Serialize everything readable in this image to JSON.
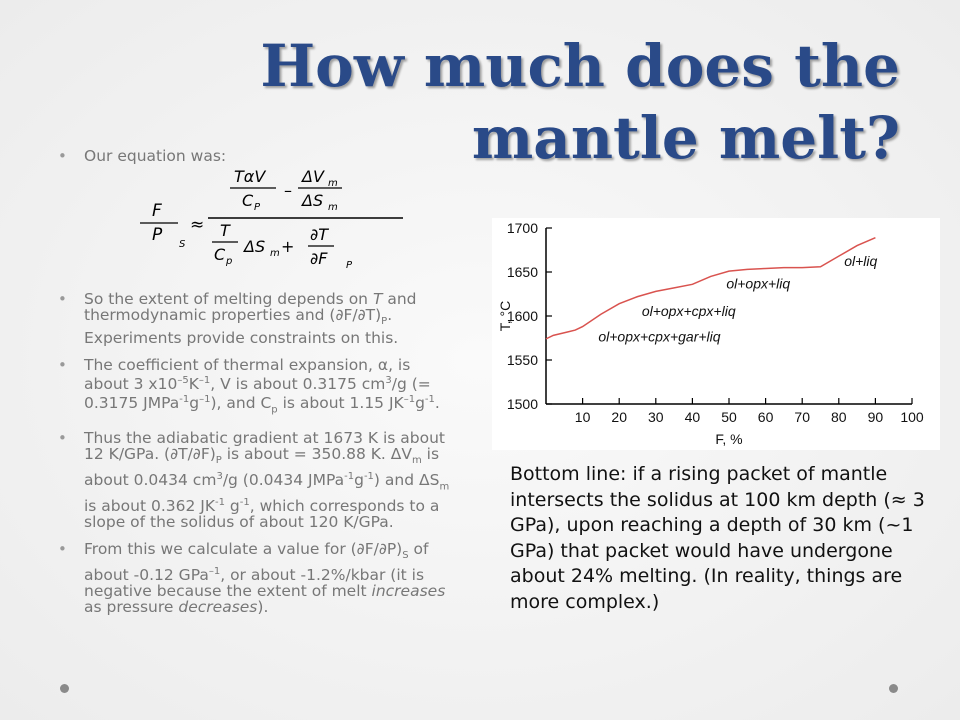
{
  "slide": {
    "title": "How much does the mantle melt?",
    "colors": {
      "title": "#2a4a88",
      "body_text": "#777777",
      "curve": "#d9534f",
      "background": "#f2f2f2"
    }
  },
  "bullets": {
    "b1": "Our equation was:",
    "b2": {
      "p1": "So the extent of melting depends on ",
      "T": "T",
      "p2": " and thermodynamic properties and (∂F/∂T)",
      "P": "P",
      "p3": ". Experiments provide constraints on this."
    },
    "b3": {
      "p1": "The coefficient of thermal expansion, α, is about 3 x10",
      "e1": "–5",
      "p2": "K",
      "e2": "–1",
      "p3": ", V is about 0.3175 cm",
      "e3": "3",
      "p4": "/g (= 0.3175 JMPa",
      "e4": "-1",
      "p5": "g",
      "e5": "–1",
      "p6": "), and C",
      "sp": "p",
      "p7": " is about 1.15 JK",
      "e6": "–1",
      "p8": "g",
      "e7": "-1",
      "p9": "."
    },
    "b4": {
      "p1": "Thus the adiabatic gradient at 1673 K is about 12 K/GPa. (∂T/∂F)",
      "sP": "P",
      "p2": " is about = 350.88 K. ΔV",
      "sm1": "m",
      "p3": " is about 0.0434 cm",
      "e1": "3",
      "p4": "/g (0.0434 JMPa",
      "e2": "-1",
      "p5": "g",
      "e3": "-1",
      "p6": ") and ΔS",
      "sm2": "m",
      "p7": " is about 0.362 JK",
      "e4": "-1",
      "p8": " g",
      "e5": "-1",
      "p9": ", which corresponds to a slope of the solidus of about 120 K/GPa."
    },
    "b5": {
      "p1": " From this we calculate a value for (∂F/∂P)",
      "sS": "S",
      "p2": " of about -0.12 GPa",
      "e1": "–1",
      "p3": ", or about -1.2%/kbar (it is negative because the extent of melt ",
      "i1": "increases",
      "p4": " as pressure ",
      "i2": "decreases",
      "p5": ")."
    }
  },
  "equation": {
    "glyph": "",
    "F": "F",
    "P": "P",
    "S": "S",
    "approx": "≈",
    "top_num": "TαV",
    "top_minus": "–",
    "dVm": "ΔV",
    "m": "m",
    "Cp": "C",
    "p": "P",
    "dSm": "ΔS",
    "T": "T",
    "cp_low": "p",
    "plus": "+",
    "dT": "∂T",
    "dF": "∂F"
  },
  "chart_data": {
    "type": "line",
    "xlabel": "F, %",
    "ylabel": "T, °C",
    "x_ticks": [
      10,
      20,
      30,
      40,
      50,
      60,
      70,
      80,
      90,
      100
    ],
    "y_ticks": [
      1500,
      1550,
      1600,
      1650,
      1700
    ],
    "xlim": [
      0,
      100
    ],
    "ylim": [
      1500,
      1700
    ],
    "series": [
      {
        "x": [
          0,
          2,
          4,
          6,
          8,
          10,
          15,
          20,
          25,
          30,
          35,
          40,
          45,
          50,
          55,
          60,
          65,
          70,
          75,
          80,
          85,
          90
        ],
        "y": [
          1574,
          1578,
          1580,
          1582,
          1584,
          1588,
          1602,
          1614,
          1622,
          1628,
          1632,
          1636,
          1645,
          1651,
          1653,
          1654,
          1655,
          1655,
          1656,
          1668,
          1680,
          1689
        ]
      }
    ],
    "annotations": [
      {
        "text": "ol+liq",
        "x": 86,
        "y": 1657
      },
      {
        "text": "ol+opx+liq",
        "x": 58,
        "y": 1631
      },
      {
        "text": "ol+opx+cpx+liq",
        "x": 39,
        "y": 1600
      },
      {
        "text": "ol+opx+cpx+gar+liq",
        "x": 31,
        "y": 1571
      }
    ]
  },
  "bottom_line": "Bottom line: if a rising packet of mantle intersects the solidus at 100 km depth (≈ 3 GPa), upon reaching a depth of 30 km (~1 GPa) that packet would have undergone about 24% melting. (In reality, things are more complex.)"
}
